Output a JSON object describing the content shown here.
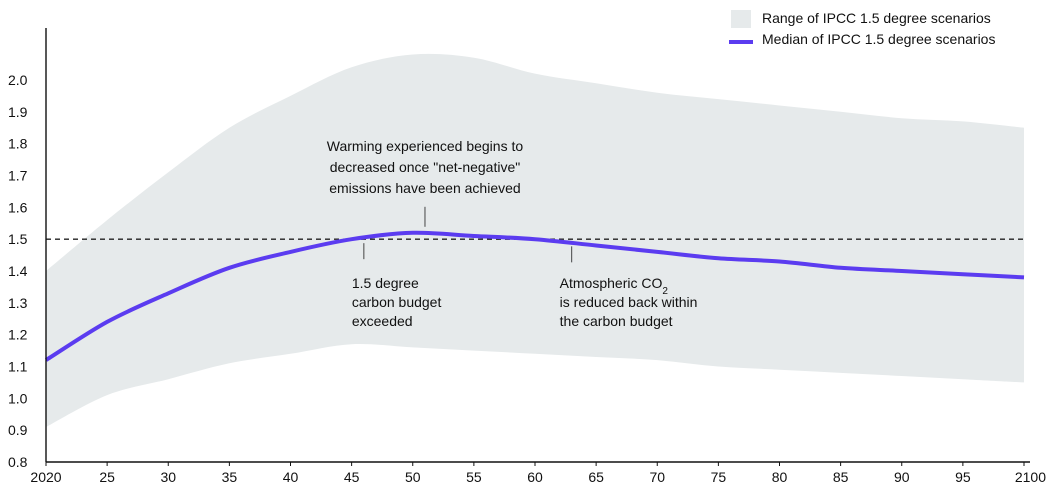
{
  "chart_data": {
    "type": "area",
    "title": "",
    "xlabel": "",
    "ylabel": "",
    "xlim": [
      2020,
      2100
    ],
    "ylim": [
      0.8,
      2.0
    ],
    "x_ticks": [
      2020,
      2025,
      2030,
      2035,
      2040,
      2045,
      2050,
      2055,
      2060,
      2065,
      2070,
      2075,
      2080,
      2085,
      2090,
      2095,
      2100
    ],
    "x_tick_labels": [
      "2020",
      "25",
      "30",
      "35",
      "40",
      "45",
      "50",
      "55",
      "60",
      "65",
      "70",
      "75",
      "80",
      "85",
      "90",
      "95",
      "2100"
    ],
    "y_ticks": [
      0.8,
      0.9,
      1.0,
      1.1,
      1.2,
      1.3,
      1.4,
      1.5,
      1.6,
      1.7,
      1.8,
      1.9,
      2.0
    ],
    "y_tick_labels": [
      "0.8",
      "0.9",
      "1.0",
      "1.1",
      "1.2",
      "1.3",
      "1.4",
      "1.5",
      "1.6",
      "1.7",
      "1.8",
      "1.9",
      "2.0"
    ],
    "reference_line": {
      "y": 1.5,
      "style": "dashed"
    },
    "legend": {
      "position": "top-right",
      "range_label": "Range of IPCC 1.5 degree scenarios",
      "median_label": "Median of IPCC 1.5 degree scenarios"
    },
    "colors": {
      "range": "#e6eaeb",
      "median": "#5b3cf0",
      "axis": "#111111"
    },
    "series": [
      {
        "name": "Range of IPCC 1.5 degree scenarios",
        "type": "band",
        "x": [
          2020,
          2025,
          2030,
          2035,
          2040,
          2045,
          2050,
          2055,
          2060,
          2065,
          2070,
          2075,
          2080,
          2085,
          2090,
          2095,
          2100
        ],
        "upper": [
          1.4,
          1.56,
          1.71,
          1.85,
          1.95,
          2.04,
          2.08,
          2.07,
          2.02,
          1.99,
          1.96,
          1.94,
          1.92,
          1.9,
          1.88,
          1.87,
          1.85
        ],
        "lower": [
          0.91,
          1.01,
          1.06,
          1.11,
          1.14,
          1.17,
          1.16,
          1.15,
          1.14,
          1.13,
          1.12,
          1.1,
          1.09,
          1.08,
          1.07,
          1.06,
          1.05
        ]
      },
      {
        "name": "Median of IPCC 1.5 degree scenarios",
        "type": "line",
        "x": [
          2020,
          2025,
          2030,
          2035,
          2040,
          2045,
          2050,
          2055,
          2060,
          2065,
          2070,
          2075,
          2080,
          2085,
          2090,
          2095,
          2100
        ],
        "values": [
          1.12,
          1.24,
          1.33,
          1.41,
          1.46,
          1.5,
          1.52,
          1.51,
          1.5,
          1.48,
          1.46,
          1.44,
          1.43,
          1.41,
          1.4,
          1.39,
          1.38
        ]
      }
    ],
    "annotations": [
      {
        "id": "exceeded",
        "x": 2046,
        "lines": [
          "1.5 degree",
          "carbon budget",
          "exceeded"
        ],
        "marker_y": 1.5,
        "side": "below"
      },
      {
        "id": "peak",
        "x": 2051,
        "lines": [
          "Warming experienced begins to",
          "decreased once \"net-negative\"",
          "emissions have been achieved"
        ],
        "marker_y": 1.52,
        "side": "above"
      },
      {
        "id": "reduced",
        "x": 2063,
        "line1_prefix": "Atmospheric CO",
        "line1_subscript": "2",
        "lines": [
          "is reduced back within",
          "the carbon budget"
        ],
        "marker_y": 1.49,
        "side": "below"
      }
    ]
  }
}
